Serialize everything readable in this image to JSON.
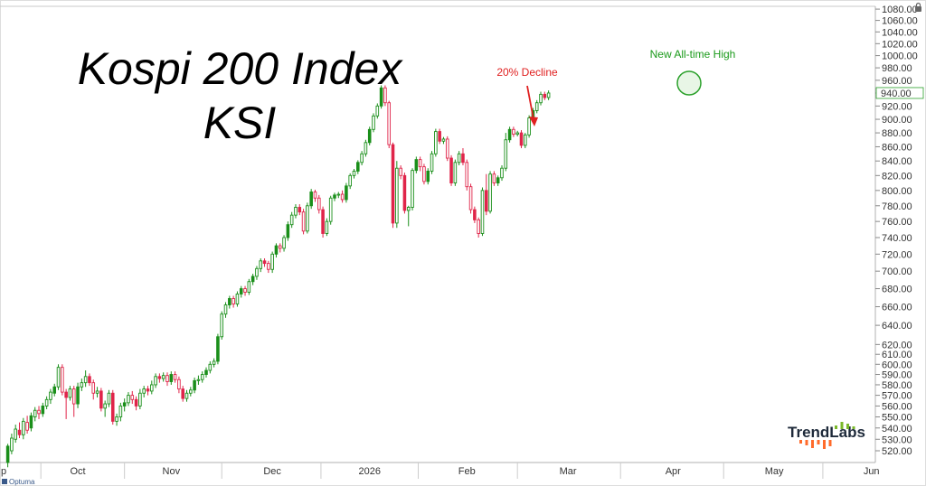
{
  "chart_data": {
    "type": "candlestick",
    "title": "Kospi 200 Index",
    "subtitle": "KSI",
    "yscale": "log",
    "ylim": [
      510,
      1085
    ],
    "y_ticks": [
      520,
      530,
      540,
      550,
      560,
      570,
      580,
      590,
      600,
      610,
      620,
      640,
      660,
      680,
      700,
      720,
      740,
      760,
      780,
      800,
      820,
      840,
      860,
      880,
      900,
      920,
      940,
      960,
      980,
      1000,
      1020,
      1040,
      1060,
      1080
    ],
    "y_tick_labels": [
      "520.00",
      "530.00",
      "540.00",
      "550.00",
      "560.00",
      "570.00",
      "580.00",
      "590.00",
      "600.00",
      "610.00",
      "620.00",
      "640.00",
      "660.00",
      "680.00",
      "700.00",
      "720.00",
      "740.00",
      "760.00",
      "780.00",
      "800.00",
      "820.00",
      "840.00",
      "860.00",
      "880.00",
      "900.00",
      "920.00",
      "940.00",
      "960.00",
      "980.00",
      "1000.00",
      "1020.00",
      "1040.00",
      "1060.00",
      "1080.00"
    ],
    "last_price": 940,
    "last_price_label": "940.00",
    "x_labels": [
      "p",
      "Oct",
      "Nov",
      "Dec",
      "2026",
      "Feb",
      "Mar",
      "Apr",
      "May",
      "Jun"
    ],
    "x_label_pos": [
      0,
      19,
      43,
      69,
      94,
      119,
      145,
      172,
      198,
      223
    ],
    "x_range": [
      -1,
      224
    ],
    "grid": "none",
    "up_color": "#1a8f1a",
    "down_color": "#e0254a",
    "candles": [
      [
        1,
        510,
        524,
        506,
        526
      ],
      [
        2,
        520,
        531,
        517,
        535
      ],
      [
        3,
        530,
        539,
        527,
        543
      ],
      [
        4,
        538,
        534,
        531,
        545
      ],
      [
        5,
        534,
        546,
        530,
        549
      ],
      [
        6,
        545,
        538,
        535,
        551
      ],
      [
        7,
        540,
        551,
        537,
        554
      ],
      [
        8,
        550,
        556,
        546,
        559
      ],
      [
        9,
        556,
        553,
        548,
        560
      ],
      [
        10,
        553,
        560,
        550,
        563
      ],
      [
        11,
        560,
        566,
        557,
        569
      ],
      [
        12,
        566,
        573,
        562,
        576
      ],
      [
        13,
        572,
        578,
        569,
        581
      ],
      [
        14,
        578,
        597,
        575,
        600
      ],
      [
        15,
        597,
        573,
        570,
        600
      ],
      [
        16,
        573,
        568,
        548,
        576
      ],
      [
        17,
        568,
        576,
        565,
        579
      ],
      [
        18,
        576,
        562,
        550,
        579
      ],
      [
        19,
        562,
        578,
        558,
        582
      ],
      [
        20,
        578,
        582,
        574,
        586
      ],
      [
        21,
        582,
        588,
        578,
        594
      ],
      [
        22,
        588,
        582,
        579,
        591
      ],
      [
        23,
        582,
        572,
        566,
        585
      ],
      [
        24,
        572,
        574,
        568,
        578
      ],
      [
        25,
        574,
        558,
        555,
        577
      ],
      [
        26,
        558,
        562,
        550,
        565
      ],
      [
        27,
        562,
        572,
        559,
        575
      ],
      [
        28,
        572,
        546,
        543,
        575
      ],
      [
        29,
        546,
        550,
        542,
        553
      ],
      [
        30,
        550,
        560,
        546,
        563
      ],
      [
        31,
        560,
        563,
        555,
        567
      ],
      [
        32,
        563,
        570,
        560,
        573
      ],
      [
        33,
        570,
        566,
        562,
        574
      ],
      [
        34,
        566,
        560,
        556,
        569
      ],
      [
        35,
        560,
        572,
        557,
        576
      ],
      [
        36,
        572,
        576,
        568,
        579
      ],
      [
        37,
        576,
        574,
        570,
        579
      ],
      [
        38,
        574,
        580,
        571,
        584
      ],
      [
        39,
        580,
        588,
        577,
        591
      ],
      [
        40,
        588,
        586,
        582,
        591
      ],
      [
        41,
        586,
        589,
        583,
        592
      ],
      [
        42,
        589,
        583,
        579,
        592
      ],
      [
        43,
        583,
        590,
        580,
        593
      ],
      [
        44,
        590,
        585,
        582,
        593
      ],
      [
        45,
        585,
        576,
        572,
        588
      ],
      [
        46,
        576,
        567,
        564,
        579
      ],
      [
        47,
        567,
        572,
        564,
        575
      ],
      [
        48,
        572,
        575,
        569,
        578
      ],
      [
        49,
        575,
        584,
        572,
        587
      ],
      [
        50,
        584,
        585,
        580,
        589
      ],
      [
        51,
        585,
        590,
        582,
        593
      ],
      [
        52,
        590,
        594,
        587,
        597
      ],
      [
        53,
        594,
        600,
        591,
        603
      ],
      [
        54,
        600,
        603,
        597,
        606
      ],
      [
        55,
        603,
        628,
        600,
        631
      ],
      [
        56,
        628,
        652,
        625,
        655
      ],
      [
        57,
        652,
        662,
        648,
        665
      ],
      [
        58,
        662,
        669,
        658,
        672
      ],
      [
        59,
        669,
        663,
        659,
        672
      ],
      [
        60,
        663,
        674,
        660,
        677
      ],
      [
        61,
        674,
        680,
        670,
        683
      ],
      [
        62,
        680,
        676,
        672,
        683
      ],
      [
        63,
        676,
        688,
        673,
        691
      ],
      [
        64,
        688,
        694,
        684,
        697
      ],
      [
        65,
        694,
        703,
        690,
        706
      ],
      [
        66,
        703,
        712,
        699,
        715
      ],
      [
        67,
        712,
        709,
        705,
        715
      ],
      [
        68,
        709,
        702,
        698,
        712
      ],
      [
        69,
        702,
        720,
        698,
        723
      ],
      [
        70,
        720,
        730,
        716,
        733
      ],
      [
        71,
        730,
        727,
        722,
        733
      ],
      [
        72,
        727,
        740,
        723,
        743
      ],
      [
        73,
        740,
        756,
        736,
        760
      ],
      [
        74,
        756,
        768,
        752,
        772
      ],
      [
        75,
        768,
        778,
        764,
        782
      ],
      [
        76,
        778,
        772,
        768,
        782
      ],
      [
        77,
        772,
        748,
        744,
        776
      ],
      [
        78,
        748,
        780,
        745,
        784
      ],
      [
        79,
        780,
        798,
        776,
        802
      ],
      [
        80,
        798,
        790,
        785,
        801
      ],
      [
        81,
        790,
        775,
        770,
        794
      ],
      [
        82,
        775,
        745,
        740,
        779
      ],
      [
        83,
        745,
        760,
        742,
        764
      ],
      [
        84,
        760,
        790,
        756,
        793
      ],
      [
        85,
        790,
        794,
        786,
        797
      ],
      [
        86,
        794,
        795,
        790,
        798
      ],
      [
        87,
        795,
        788,
        784,
        800
      ],
      [
        88,
        788,
        806,
        784,
        810
      ],
      [
        89,
        806,
        820,
        802,
        823
      ],
      [
        90,
        820,
        826,
        816,
        829
      ],
      [
        91,
        826,
        838,
        822,
        841
      ],
      [
        92,
        838,
        850,
        834,
        854
      ],
      [
        93,
        850,
        866,
        846,
        870
      ],
      [
        94,
        866,
        885,
        862,
        889
      ],
      [
        95,
        885,
        905,
        881,
        909
      ],
      [
        96,
        905,
        920,
        901,
        924
      ],
      [
        97,
        920,
        948,
        916,
        952
      ],
      [
        98,
        948,
        925,
        920,
        952
      ],
      [
        99,
        925,
        863,
        858,
        928
      ],
      [
        100,
        863,
        758,
        752,
        866
      ],
      [
        101,
        758,
        830,
        752,
        840
      ],
      [
        102,
        830,
        820,
        815,
        834
      ],
      [
        103,
        820,
        774,
        770,
        824
      ],
      [
        104,
        774,
        778,
        754,
        780
      ],
      [
        105,
        778,
        827,
        774,
        830
      ],
      [
        106,
        827,
        842,
        823,
        846
      ],
      [
        107,
        842,
        832,
        826,
        846
      ],
      [
        108,
        832,
        812,
        808,
        836
      ],
      [
        109,
        812,
        826,
        808,
        830
      ],
      [
        110,
        826,
        850,
        822,
        854
      ],
      [
        111,
        850,
        882,
        846,
        886
      ],
      [
        112,
        882,
        868,
        864,
        886
      ],
      [
        113,
        868,
        871,
        864,
        874
      ],
      [
        114,
        871,
        844,
        840,
        875
      ],
      [
        115,
        844,
        810,
        806,
        848
      ],
      [
        116,
        810,
        838,
        806,
        842
      ],
      [
        117,
        838,
        850,
        834,
        854
      ],
      [
        118,
        850,
        838,
        834,
        858
      ],
      [
        119,
        838,
        805,
        800,
        842
      ],
      [
        120,
        805,
        775,
        770,
        809
      ],
      [
        121,
        775,
        762,
        758,
        779
      ],
      [
        122,
        762,
        745,
        740,
        765
      ],
      [
        123,
        745,
        800,
        742,
        804
      ],
      [
        124,
        800,
        773,
        768,
        822
      ],
      [
        125,
        773,
        822,
        770,
        826
      ],
      [
        126,
        822,
        810,
        806,
        826
      ],
      [
        127,
        810,
        817,
        806,
        820
      ],
      [
        128,
        817,
        830,
        813,
        834
      ],
      [
        129,
        830,
        870,
        826,
        880
      ],
      [
        130,
        870,
        885,
        866,
        889
      ],
      [
        131,
        885,
        878,
        874,
        889
      ],
      [
        132,
        878,
        880,
        875,
        883
      ],
      [
        133,
        880,
        862,
        858,
        884
      ],
      [
        134,
        862,
        877,
        858,
        880
      ],
      [
        135,
        877,
        902,
        873,
        906
      ],
      [
        136,
        902,
        913,
        898,
        917
      ],
      [
        137,
        913,
        925,
        909,
        929
      ],
      [
        138,
        925,
        938,
        921,
        942
      ],
      [
        139,
        938,
        933,
        929,
        942
      ],
      [
        140,
        933,
        940,
        929,
        944
      ]
    ],
    "annotations": {
      "decline": "20% Decline",
      "high": "New All-time High"
    }
  },
  "brand": {
    "name": "TrendLabs",
    "dot_colors": [
      "#ff6b2b",
      "#7ab82a"
    ]
  },
  "footer": {
    "source": "Optuma"
  },
  "header": {
    "lock_icon": "lock-icon"
  }
}
